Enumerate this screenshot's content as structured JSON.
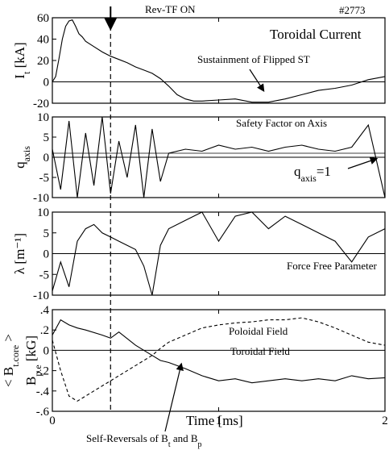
{
  "chart_data": {
    "type": "line",
    "shot_label": "#2773",
    "top_annotation": "Rev-TF ON",
    "marker_time": 0.35,
    "xlabel": "Time [ms]",
    "xlim": [
      0,
      2
    ],
    "xticks": [
      0,
      1,
      2
    ],
    "bottom_annotation": {
      "text": "Self-Reversals of B",
      "sub1": "t",
      "mid": " and B",
      "sub2": "p"
    },
    "panels": [
      {
        "id": "current",
        "ylabel_main": "I",
        "ylabel_sub": "t",
        "ylabel_unit": "[kA]",
        "ylim": [
          -20,
          60
        ],
        "yticks": [
          -20,
          0,
          20,
          40,
          60
        ],
        "baseline": 0,
        "title": "Toroidal Current",
        "annotation": "Sustainment of Flipped ST",
        "series": [
          {
            "style": "solid",
            "x": [
              0.0,
              0.02,
              0.04,
              0.06,
              0.08,
              0.1,
              0.12,
              0.14,
              0.16,
              0.18,
              0.2,
              0.25,
              0.3,
              0.35,
              0.4,
              0.45,
              0.5,
              0.55,
              0.6,
              0.65,
              0.7,
              0.75,
              0.8,
              0.85,
              0.9,
              1.0,
              1.1,
              1.2,
              1.3,
              1.4,
              1.5,
              1.6,
              1.7,
              1.8,
              1.9,
              2.0
            ],
            "y": [
              0,
              5,
              22,
              40,
              52,
              57,
              58,
              52,
              45,
              42,
              38,
              33,
              28,
              24,
              21,
              18,
              14,
              11,
              8,
              3,
              -4,
              -12,
              -16,
              -18,
              -18,
              -17,
              -16,
              -19,
              -19,
              -16,
              -12,
              -8,
              -6,
              -3,
              2,
              5
            ]
          }
        ]
      },
      {
        "id": "safety",
        "ylabel_main": "q",
        "ylabel_sub": "axis",
        "ylabel_unit": "",
        "ylim": [
          -10,
          10
        ],
        "yticks": [
          -10,
          -5,
          0,
          5,
          10
        ],
        "baseline": 0,
        "ref_line": 1,
        "title": "Safety Factor on Axis",
        "annotation_main": "q",
        "annotation_sub": "axis",
        "annotation_rest": "=1",
        "series": [
          {
            "style": "solid",
            "x": [
              0.0,
              0.05,
              0.1,
              0.15,
              0.2,
              0.25,
              0.3,
              0.35,
              0.4,
              0.45,
              0.5,
              0.55,
              0.6,
              0.65,
              0.7,
              0.8,
              0.9,
              1.0,
              1.1,
              1.2,
              1.3,
              1.4,
              1.5,
              1.6,
              1.7,
              1.8,
              1.9,
              2.0
            ],
            "y": [
              2,
              -8,
              9,
              -10,
              6,
              -7,
              10,
              -9,
              4,
              -5,
              8,
              -10,
              7,
              -6,
              1,
              2,
              1.5,
              3,
              2,
              2.5,
              1.5,
              2.5,
              3,
              2,
              1.5,
              2.5,
              8,
              -10
            ]
          }
        ]
      },
      {
        "id": "lambda",
        "ylabel_main": "λ",
        "ylabel_sub": "",
        "ylabel_unit": "[m⁻¹]",
        "ylim": [
          -10,
          10
        ],
        "yticks": [
          -10,
          -5,
          0,
          5,
          10
        ],
        "baseline": 0,
        "title": "Force Free Parameter",
        "series": [
          {
            "style": "solid",
            "x": [
              0.0,
              0.05,
              0.1,
              0.15,
              0.2,
              0.25,
              0.3,
              0.35,
              0.4,
              0.45,
              0.5,
              0.55,
              0.6,
              0.65,
              0.7,
              0.8,
              0.9,
              1.0,
              1.1,
              1.2,
              1.3,
              1.4,
              1.5,
              1.6,
              1.7,
              1.8,
              1.9,
              2.0
            ],
            "y": [
              -9,
              -2,
              -8,
              3,
              6,
              7,
              5,
              4,
              3,
              2,
              1,
              -3,
              -10,
              2,
              6,
              8,
              10,
              3,
              9,
              10,
              6,
              9,
              7,
              5,
              3,
              -2,
              4,
              6
            ]
          }
        ]
      },
      {
        "id": "fields",
        "ylabel_main": "B",
        "ylabel_sub": "p.e",
        "ylabel_unit": "[kG]",
        "ylabel_extra": "< B",
        "ylabel_extra_sub": "t.core",
        "ylabel_extra_end": " >",
        "ylim": [
          -0.6,
          0.4
        ],
        "yticks": [
          -0.6,
          -0.4,
          -0.2,
          0,
          0.2,
          0.4
        ],
        "baseline": 0,
        "labels": [
          "Poloidal Field",
          "Toroidal Field"
        ],
        "series": [
          {
            "name": "Poloidal Field",
            "style": "dashed",
            "x": [
              0.0,
              0.05,
              0.1,
              0.15,
              0.2,
              0.3,
              0.35,
              0.4,
              0.5,
              0.6,
              0.65,
              0.7,
              0.8,
              0.9,
              1.0,
              1.1,
              1.2,
              1.3,
              1.4,
              1.5,
              1.6,
              1.7,
              1.8,
              1.9,
              2.0
            ],
            "y": [
              0.1,
              -0.2,
              -0.45,
              -0.5,
              -0.45,
              -0.35,
              -0.3,
              -0.25,
              -0.15,
              -0.05,
              0.02,
              0.08,
              0.15,
              0.22,
              0.25,
              0.27,
              0.28,
              0.3,
              0.3,
              0.32,
              0.28,
              0.22,
              0.15,
              0.08,
              0.05
            ]
          },
          {
            "name": "Toroidal Field",
            "style": "solid",
            "x": [
              0.0,
              0.05,
              0.1,
              0.15,
              0.2,
              0.3,
              0.35,
              0.4,
              0.5,
              0.6,
              0.65,
              0.7,
              0.8,
              0.9,
              1.0,
              1.1,
              1.2,
              1.3,
              1.4,
              1.5,
              1.6,
              1.7,
              1.8,
              1.9,
              2.0
            ],
            "y": [
              0.15,
              0.3,
              0.25,
              0.22,
              0.2,
              0.15,
              0.12,
              0.18,
              0.05,
              -0.05,
              -0.1,
              -0.12,
              -0.18,
              -0.25,
              -0.3,
              -0.28,
              -0.32,
              -0.3,
              -0.28,
              -0.3,
              -0.28,
              -0.3,
              -0.25,
              -0.28,
              -0.27
            ]
          }
        ]
      }
    ]
  }
}
